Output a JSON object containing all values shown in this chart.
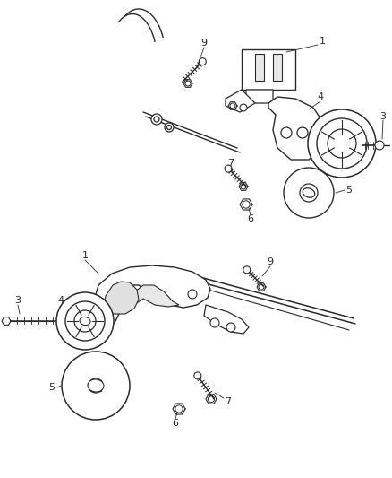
{
  "background_color": "#ffffff",
  "fig_width": 4.39,
  "fig_height": 5.33,
  "dpi": 100,
  "line_color": "#2a2a2a",
  "line_width": 0.9,
  "font_size": 8
}
